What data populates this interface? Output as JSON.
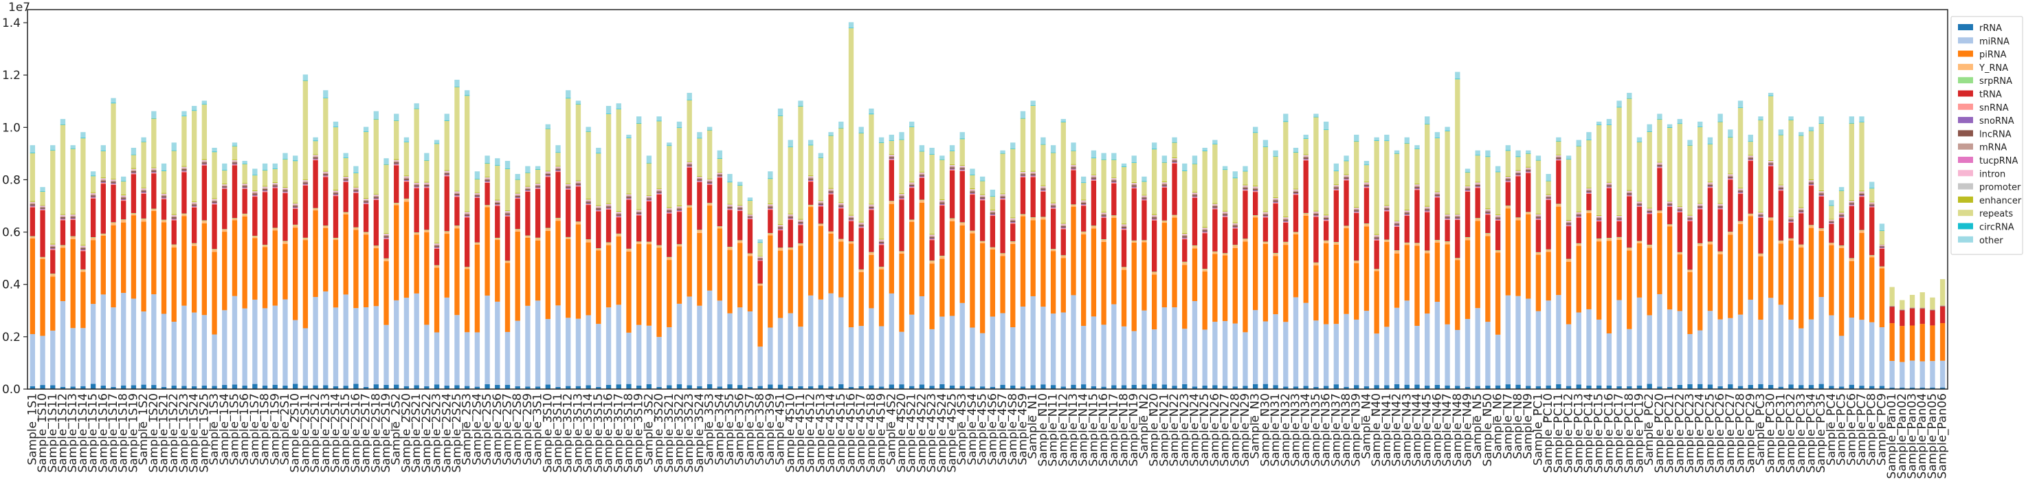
{
  "chart_data": {
    "type": "bar",
    "stacked": true,
    "title": "",
    "xlabel": "",
    "ylabel": "",
    "y_exponent_label": "1e7",
    "y_scale": 10000000,
    "ylim": [
      0,
      1.45
    ],
    "yticks": [
      "0.0",
      "0.2",
      "0.4",
      "0.6",
      "0.8",
      "1.0",
      "1.2",
      "1.4"
    ],
    "ytick_values": [
      0,
      0.2,
      0.4,
      0.6,
      0.8,
      1.0,
      1.2,
      1.4
    ],
    "grid": false,
    "legend_position": "right",
    "categories": [
      "Sample_1S1",
      "Sample_1S10",
      "Sample_1S11",
      "Sample_1S12",
      "Sample_1S13",
      "Sample_1S14",
      "Sample_1S15",
      "Sample_1S16",
      "Sample_1S17",
      "Sample_1S18",
      "Sample_1S19",
      "Sample_1S2",
      "Sample_1S20",
      "Sample_1S21",
      "Sample_1S22",
      "Sample_1S23",
      "Sample_1S24",
      "Sample_1S25",
      "Sample_1S3",
      "Sample_1S4",
      "Sample_1S5",
      "Sample_1S6",
      "Sample_1S7",
      "Sample_1S8",
      "Sample_1S9",
      "Sample_2S1",
      "Sample_2S10",
      "Sample_2S11",
      "Sample_2S12",
      "Sample_2S13",
      "Sample_2S14",
      "Sample_2S15",
      "Sample_2S16",
      "Sample_2S17",
      "Sample_2S18",
      "Sample_2S19",
      "Sample_2S2",
      "Sample_2S20",
      "Sample_2S21",
      "Sample_2S22",
      "Sample_2S23",
      "Sample_2S24",
      "Sample_2S25",
      "Sample_2S3",
      "Sample_2S4",
      "Sample_2S5",
      "Sample_2S6",
      "Sample_2S7",
      "Sample_2S8",
      "Sample_2S9",
      "Sample_3S1",
      "Sample_3S10",
      "Sample_3S11",
      "Sample_3S12",
      "Sample_3S13",
      "Sample_3S14",
      "Sample_3S15",
      "Sample_3S16",
      "Sample_3S17",
      "Sample_3S18",
      "Sample_3S19",
      "Sample_3S2",
      "Sample_3S20",
      "Sample_3S21",
      "Sample_3S22",
      "Sample_3S23",
      "Sample_3S24",
      "Sample_3S3",
      "Sample_3S4",
      "Sample_3S5",
      "Sample_3S6",
      "Sample_3S7",
      "Sample_3S8",
      "Sample_3S9",
      "Sample_4S1",
      "Sample_4S10",
      "Sample_4S11",
      "Sample_4S12",
      "Sample_4S13",
      "Sample_4S14",
      "Sample_4S15",
      "Sample_4S16",
      "Sample_4S17",
      "Sample_4S18",
      "Sample_4S19",
      "Sample_4S2",
      "Sample_4S20",
      "Sample_4S21",
      "Sample_4S22",
      "Sample_4S23",
      "Sample_4S24",
      "Sample_4S25",
      "Sample_4S3",
      "Sample_4S4",
      "Sample_4S5",
      "Sample_4S6",
      "Sample_4S7",
      "Sample_4S8",
      "Sample_4S9",
      "Sample_N1",
      "Sample_N10",
      "Sample_N11",
      "Sample_N12",
      "Sample_N13",
      "Sample_N14",
      "Sample_N15",
      "Sample_N16",
      "Sample_N17",
      "Sample_N18",
      "Sample_N19",
      "Sample_N2",
      "Sample_N20",
      "Sample_N21",
      "Sample_N22",
      "Sample_N23",
      "Sample_N24",
      "Sample_N25",
      "Sample_N26",
      "Sample_N27",
      "Sample_N28",
      "Sample_N29",
      "Sample_N3",
      "Sample_N30",
      "Sample_N31",
      "Sample_N32",
      "Sample_N33",
      "Sample_N34",
      "Sample_N35",
      "Sample_N36",
      "Sample_N37",
      "Sample_N38",
      "Sample_N39",
      "Sample_N4",
      "Sample_N40",
      "Sample_N41",
      "Sample_N42",
      "Sample_N43",
      "Sample_N44",
      "Sample_N45",
      "Sample_N46",
      "Sample_N47",
      "Sample_N48",
      "Sample_N49",
      "Sample_N5",
      "Sample_N50",
      "Sample_N6",
      "Sample_N7",
      "Sample_N8",
      "Sample_N9",
      "Sample_PC1",
      "Sample_PC10",
      "Sample_PC11",
      "Sample_PC12",
      "Sample_PC13",
      "Sample_PC14",
      "Sample_PC15",
      "Sample_PC16",
      "Sample_PC17",
      "Sample_PC18",
      "Sample_PC19",
      "Sample_PC2",
      "Sample_PC20",
      "Sample_PC21",
      "Sample_PC22",
      "Sample_PC23",
      "Sample_PC24",
      "Sample_PC25",
      "Sample_PC26",
      "Sample_PC27",
      "Sample_PC28",
      "Sample_PC29",
      "Sample_PC3",
      "Sample_PC30",
      "Sample_PC31",
      "Sample_PC32",
      "Sample_PC33",
      "Sample_PC34",
      "Sample_PC35",
      "Sample_PC4",
      "Sample_PC5",
      "Sample_PC6",
      "Sample_PC7",
      "Sample_PC8",
      "Sample_PC9",
      "Sample_Pan01",
      "Sample_Pan02",
      "Sample_Pan03",
      "Sample_Pan04",
      "Sample_Pan05",
      "Sample_Pan06"
    ],
    "totals": [
      0.93,
      0.77,
      0.93,
      1.03,
      0.93,
      0.98,
      0.83,
      0.93,
      1.11,
      0.81,
      0.92,
      0.96,
      1.06,
      0.86,
      0.94,
      1.06,
      1.08,
      1.1,
      0.92,
      0.86,
      0.94,
      0.87,
      0.84,
      0.86,
      0.86,
      0.9,
      0.89,
      1.2,
      0.96,
      1.14,
      1.02,
      0.9,
      0.85,
      1.0,
      1.06,
      0.88,
      1.05,
      0.96,
      1.09,
      0.9,
      0.95,
      1.05,
      1.18,
      1.14,
      0.83,
      0.89,
      0.88,
      0.87,
      0.82,
      0.85,
      0.85,
      1.01,
      0.93,
      1.14,
      1.1,
      1.0,
      0.92,
      1.08,
      1.09,
      0.97,
      1.04,
      0.89,
      1.04,
      0.94,
      1.02,
      1.13,
      0.98,
      1.0,
      0.91,
      0.82,
      0.79,
      0.73,
      0.57,
      0.83,
      1.07,
      0.95,
      1.1,
      0.95,
      0.9,
      0.98,
      1.02,
      1.4,
      1.0,
      1.07,
      0.96,
      0.97,
      0.98,
      1.02,
      0.93,
      0.92,
      0.89,
      0.93,
      0.98,
      0.84,
      0.81,
      0.76,
      0.91,
      0.94,
      1.06,
      1.1,
      0.96,
      0.93,
      1.03,
      0.94,
      0.81,
      0.91,
      0.9,
      0.9,
      0.86,
      0.89,
      0.81,
      0.94,
      0.89,
      0.96,
      0.86,
      0.89,
      0.92,
      0.95,
      0.85,
      0.83,
      0.85,
      1.0,
      0.95,
      0.91,
      1.05,
      0.92,
      0.97,
      1.05,
      1.02,
      0.86,
      0.89,
      0.97,
      0.87,
      0.96,
      0.97,
      0.91,
      0.96,
      0.93,
      1.04,
      0.98,
      1.0,
      1.21,
      0.84,
      0.91,
      0.91,
      0.85,
      0.93,
      0.91,
      0.91,
      0.89,
      0.82,
      0.96,
      0.89,
      0.95,
      0.98,
      1.02,
      1.03,
      1.1,
      1.13,
      0.96,
      1.01,
      1.05,
      1.01,
      1.03,
      0.95,
      1.02,
      0.96,
      1.05,
      0.99,
      1.1,
      0.97,
      1.04,
      1.13,
      0.99,
      1.04,
      0.98,
      1.0,
      1.04,
      0.72,
      0.77,
      1.04,
      1.04,
      0.79,
      0.63,
      0.39,
      0.34,
      0.36,
      0.37,
      0.35,
      0.42
    ],
    "series": [
      {
        "name": "rRNA",
        "color": "#1f77b4"
      },
      {
        "name": "miRNA",
        "color": "#aec7e8"
      },
      {
        "name": "piRNA",
        "color": "#ff7f0e"
      },
      {
        "name": "Y_RNA",
        "color": "#ffbb78"
      },
      {
        "name": "srpRNA",
        "color": "#98df8a"
      },
      {
        "name": "tRNA",
        "color": "#d62728"
      },
      {
        "name": "snRNA",
        "color": "#ff9896"
      },
      {
        "name": "snoRNA",
        "color": "#9467bd"
      },
      {
        "name": "lncRNA",
        "color": "#8c564b"
      },
      {
        "name": "mRNA",
        "color": "#c49c94"
      },
      {
        "name": "tucpRNA",
        "color": "#e377c2"
      },
      {
        "name": "intron",
        "color": "#f7b6d2"
      },
      {
        "name": "promoter",
        "color": "#c7c7c7"
      },
      {
        "name": "enhancer",
        "color": "#bcbd22"
      },
      {
        "name": "repeats",
        "color": "#dbdb8d"
      },
      {
        "name": "circRNA",
        "color": "#17becf"
      },
      {
        "name": "other",
        "color": "#9edae5"
      }
    ]
  }
}
